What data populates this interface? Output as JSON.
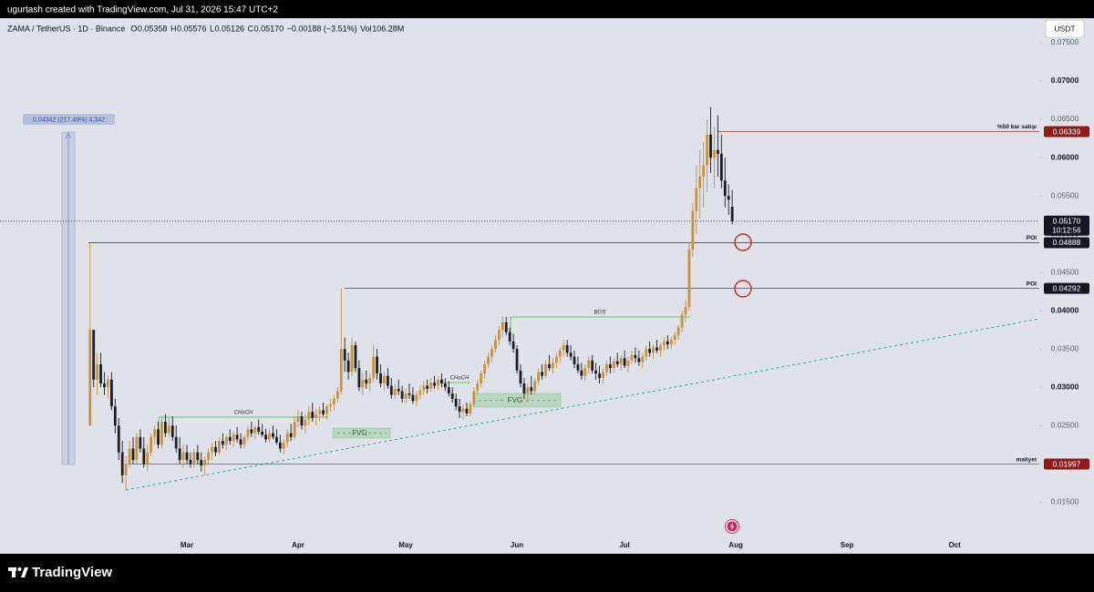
{
  "header": {
    "credit": "ugurtash created with TradingView.com, Jul 31, 2026 15:47 UTC+2",
    "legend": {
      "symbol": "ZAMA / TetherUS · 1D · Binance",
      "ohlc": [
        {
          "label": "O",
          "value": "0.05358"
        },
        {
          "label": "H",
          "value": "0.05576"
        },
        {
          "label": "L",
          "value": "0.05126"
        },
        {
          "label": "C",
          "value": "0.05170"
        }
      ],
      "change": "−0.00188 (−3.51%)",
      "volume_label": "Vol",
      "volume": "106.28M"
    },
    "currency": "USDT"
  },
  "chart_data": {
    "type": "candlestick",
    "categories": [
      null,
      null,
      null,
      null,
      null,
      null,
      null,
      null,
      null,
      null,
      null,
      null,
      null,
      null,
      null,
      null,
      null,
      null,
      null,
      null,
      null,
      null,
      null,
      null,
      null,
      null,
      null,
      "Mar",
      null,
      null,
      null,
      null,
      null,
      null,
      null,
      null,
      null,
      null,
      null,
      null,
      null,
      null,
      null,
      null,
      null,
      null,
      null,
      null,
      null,
      null,
      null,
      null,
      null,
      null,
      null,
      null,
      null,
      null,
      "Apr",
      null,
      null,
      null,
      null,
      null,
      null,
      null,
      null,
      null,
      null,
      null,
      null,
      null,
      null,
      null,
      null,
      null,
      null,
      null,
      null,
      null,
      null,
      null,
      null,
      null,
      null,
      null,
      null,
      null,
      "May",
      null,
      null,
      null,
      null,
      null,
      null,
      null,
      null,
      null,
      null,
      null,
      null,
      null,
      null,
      null,
      null,
      null,
      null,
      null,
      null,
      null,
      null,
      null,
      null,
      null,
      null,
      null,
      null,
      null,
      null,
      "Jun",
      null,
      null,
      null,
      null,
      null,
      null,
      null,
      null,
      null,
      null,
      null,
      null,
      null,
      null,
      null,
      null,
      null,
      null,
      null,
      null,
      null,
      null,
      null,
      null,
      null,
      null,
      null,
      null,
      null,
      "Jul",
      null,
      null,
      null,
      null,
      null,
      null,
      null,
      null,
      null,
      null,
      null,
      null,
      null,
      null,
      null,
      null,
      null,
      null,
      null,
      null,
      null,
      null,
      null,
      null,
      null,
      null,
      null,
      null,
      null,
      null,
      "Aug",
      null,
      null,
      null,
      null,
      null,
      null,
      null,
      null,
      null,
      null,
      null,
      null,
      null,
      null,
      null,
      null,
      null,
      null,
      null,
      null,
      null,
      null,
      null,
      null,
      null,
      null,
      null,
      null,
      null,
      null,
      "Sep",
      null,
      null,
      null,
      null,
      null,
      null,
      null,
      null,
      null,
      null,
      null,
      null,
      null,
      null,
      null,
      null,
      null,
      null,
      null,
      null,
      null,
      null,
      null,
      null,
      null,
      null,
      null,
      null,
      null,
      "Oct",
      null,
      null,
      null,
      null,
      null,
      null,
      null,
      null,
      null,
      null,
      null,
      null,
      null,
      null,
      null,
      null,
      null,
      null,
      null,
      null,
      null,
      null,
      null
    ],
    "open": [
      0.025,
      0.0375,
      0.031,
      0.033,
      0.0305,
      0.03,
      0.031,
      0.0275,
      0.025,
      0.0215,
      0.0185,
      0.02,
      0.022,
      0.0205,
      0.0235,
      0.022,
      0.02,
      0.0215,
      0.0235,
      0.0245,
      0.0225,
      0.0255,
      0.024,
      0.025,
      0.0235,
      0.022,
      0.0205,
      0.0215,
      0.0205,
      0.02,
      0.0215,
      0.0205,
      0.0198,
      0.0205,
      0.0215,
      0.0222,
      0.0215,
      0.023,
      0.0225,
      0.0235,
      0.023,
      0.0238,
      0.0232,
      0.0225,
      0.0235,
      0.0245,
      0.024,
      0.0248,
      0.0242,
      0.0238,
      0.0232,
      0.024,
      0.0235,
      0.0228,
      0.022,
      0.0228,
      0.024,
      0.0235,
      0.0255,
      0.0262,
      0.025,
      0.0258,
      0.0268,
      0.026,
      0.0265,
      0.027,
      0.0265,
      0.0275,
      0.0278,
      0.0285,
      0.0295,
      0.035,
      0.0335,
      0.032,
      0.0355,
      0.0325,
      0.03,
      0.031,
      0.0305,
      0.0312,
      0.034,
      0.0318,
      0.0305,
      0.0315,
      0.0302,
      0.029,
      0.0298,
      0.0295,
      0.0285,
      0.0292,
      0.029,
      0.0282,
      0.029,
      0.0296,
      0.0302,
      0.0298,
      0.0306,
      0.0302,
      0.031,
      0.0305,
      0.03,
      0.0292,
      0.0285,
      0.0275,
      0.0268,
      0.0272,
      0.0266,
      0.0278,
      0.0295,
      0.0305,
      0.0318,
      0.033,
      0.034,
      0.035,
      0.0362,
      0.0375,
      0.0385,
      0.0372,
      0.036,
      0.035,
      0.0322,
      0.0305,
      0.0292,
      0.03,
      0.0295,
      0.0308,
      0.032,
      0.0315,
      0.033,
      0.0325,
      0.0332,
      0.034,
      0.0348,
      0.0355,
      0.0345,
      0.034,
      0.033,
      0.0322,
      0.0315,
      0.0325,
      0.0335,
      0.0322,
      0.0318,
      0.0312,
      0.032,
      0.033,
      0.0325,
      0.0334,
      0.033,
      0.0338,
      0.0328,
      0.0335,
      0.0342,
      0.0338,
      0.0333,
      0.034,
      0.035,
      0.0345,
      0.0352,
      0.0348,
      0.0355,
      0.036,
      0.0356,
      0.0362,
      0.0368,
      0.0378,
      0.0395,
      0.0405,
      0.048,
      0.053,
      0.056,
      0.0575,
      0.059,
      0.063,
      0.06,
      0.061,
      0.0605,
      0.057,
      0.055,
      0.05358,
      null,
      null,
      null,
      null,
      null,
      null,
      null,
      null,
      null,
      null,
      null,
      null,
      null,
      null,
      null,
      null,
      null,
      null,
      null,
      null,
      null,
      null,
      null,
      null,
      null,
      null,
      null,
      null,
      null,
      null,
      null,
      null,
      null,
      null,
      null,
      null,
      null,
      null,
      null,
      null,
      null,
      null,
      null,
      null,
      null,
      null,
      null,
      null,
      null,
      null,
      null,
      null,
      null,
      null,
      null,
      null,
      null,
      null,
      null,
      null,
      null,
      null,
      null,
      null,
      null,
      null,
      null,
      null,
      null,
      null,
      null,
      null,
      null,
      null,
      null,
      null,
      null,
      null,
      null,
      null,
      null,
      null,
      null,
      null,
      null
    ],
    "high": [
      0.0489,
      0.0375,
      0.0345,
      0.0345,
      0.032,
      0.0315,
      0.032,
      0.0285,
      0.026,
      0.023,
      0.021,
      0.023,
      0.0235,
      0.024,
      0.0245,
      0.0235,
      0.0225,
      0.024,
      0.025,
      0.0255,
      0.026,
      0.0265,
      0.026,
      0.0262,
      0.025,
      0.0235,
      0.0225,
      0.0225,
      0.0215,
      0.022,
      0.0225,
      0.0215,
      0.021,
      0.022,
      0.0228,
      0.023,
      0.0235,
      0.024,
      0.0238,
      0.0245,
      0.0242,
      0.0248,
      0.024,
      0.0238,
      0.025,
      0.0255,
      0.025,
      0.0258,
      0.0252,
      0.0246,
      0.0245,
      0.025,
      0.0245,
      0.0238,
      0.0232,
      0.0245,
      0.0252,
      0.0262,
      0.027,
      0.0268,
      0.0265,
      0.0275,
      0.028,
      0.0272,
      0.0275,
      0.028,
      0.0278,
      0.0285,
      0.029,
      0.03,
      0.0429,
      0.0365,
      0.0345,
      0.0365,
      0.036,
      0.0335,
      0.032,
      0.0322,
      0.0318,
      0.0355,
      0.035,
      0.033,
      0.032,
      0.0325,
      0.0312,
      0.0305,
      0.031,
      0.0302,
      0.0298,
      0.0305,
      0.03,
      0.0295,
      0.0302,
      0.0308,
      0.031,
      0.0312,
      0.0315,
      0.0314,
      0.0318,
      0.0312,
      0.0308,
      0.03,
      0.0292,
      0.0285,
      0.0278,
      0.028,
      0.0282,
      0.03,
      0.031,
      0.0322,
      0.0335,
      0.0345,
      0.0355,
      0.0368,
      0.038,
      0.0393,
      0.0392,
      0.0378,
      0.037,
      0.0355,
      0.033,
      0.0312,
      0.0305,
      0.0315,
      0.0312,
      0.0325,
      0.033,
      0.0335,
      0.0342,
      0.0338,
      0.0345,
      0.0352,
      0.0362,
      0.0362,
      0.0355,
      0.0348,
      0.034,
      0.0332,
      0.033,
      0.034,
      0.0342,
      0.0332,
      0.0328,
      0.0325,
      0.0335,
      0.034,
      0.0338,
      0.0345,
      0.0342,
      0.0348,
      0.034,
      0.0348,
      0.0352,
      0.0348,
      0.0345,
      0.0355,
      0.036,
      0.0356,
      0.0362,
      0.0358,
      0.0365,
      0.0368,
      0.0366,
      0.0372,
      0.0382,
      0.04,
      0.0415,
      0.049,
      0.054,
      0.059,
      0.061,
      0.062,
      0.065,
      0.0666,
      0.064,
      0.0655,
      0.063,
      0.06,
      0.0565,
      0.05576,
      null,
      null,
      null,
      null,
      null,
      null,
      null,
      null,
      null,
      null,
      null,
      null,
      null,
      null,
      null,
      null,
      null,
      null,
      null,
      null,
      null,
      null,
      null,
      null,
      null,
      null,
      null,
      null,
      null,
      null,
      null,
      null,
      null,
      null,
      null,
      null,
      null,
      null,
      null,
      null,
      null,
      null,
      null,
      null,
      null,
      null,
      null,
      null,
      null,
      null,
      null,
      null,
      null,
      null,
      null,
      null,
      null,
      null,
      null,
      null,
      null,
      null,
      null,
      null,
      null,
      null,
      null,
      null,
      null,
      null,
      null,
      null,
      null,
      null,
      null,
      null,
      null,
      null,
      null,
      null,
      null,
      null,
      null,
      null,
      null
    ],
    "low": [
      0.025,
      0.03,
      0.029,
      0.03,
      0.029,
      0.0285,
      0.027,
      0.024,
      0.0205,
      0.0175,
      0.0165,
      0.0195,
      0.02,
      0.02,
      0.0215,
      0.0195,
      0.019,
      0.021,
      0.0225,
      0.022,
      0.022,
      0.0235,
      0.0235,
      0.023,
      0.0215,
      0.02,
      0.0195,
      0.02,
      0.0195,
      0.0195,
      0.02,
      0.019,
      0.0185,
      0.02,
      0.0205,
      0.021,
      0.0212,
      0.022,
      0.0218,
      0.0225,
      0.0222,
      0.0228,
      0.022,
      0.022,
      0.023,
      0.0235,
      0.0232,
      0.0238,
      0.0235,
      0.0228,
      0.0228,
      0.0232,
      0.0225,
      0.0215,
      0.0212,
      0.0222,
      0.023,
      0.0232,
      0.0248,
      0.0245,
      0.024,
      0.025,
      0.0255,
      0.025,
      0.0255,
      0.0262,
      0.0258,
      0.0268,
      0.027,
      0.028,
      0.029,
      0.032,
      0.031,
      0.0315,
      0.032,
      0.0295,
      0.029,
      0.0298,
      0.0295,
      0.0308,
      0.031,
      0.03,
      0.0295,
      0.0298,
      0.0285,
      0.0285,
      0.029,
      0.028,
      0.0278,
      0.0285,
      0.0278,
      0.0275,
      0.0284,
      0.029,
      0.0292,
      0.0294,
      0.0298,
      0.0296,
      0.03,
      0.0295,
      0.0288,
      0.028,
      0.027,
      0.026,
      0.0258,
      0.0262,
      0.0262,
      0.0275,
      0.029,
      0.03,
      0.0312,
      0.0325,
      0.0332,
      0.0345,
      0.0355,
      0.0365,
      0.0368,
      0.0355,
      0.0345,
      0.0318,
      0.03,
      0.0285,
      0.028,
      0.029,
      0.029,
      0.0302,
      0.031,
      0.0312,
      0.0322,
      0.0318,
      0.0325,
      0.0332,
      0.034,
      0.034,
      0.0335,
      0.0325,
      0.0318,
      0.031,
      0.0308,
      0.0318,
      0.0318,
      0.031,
      0.0305,
      0.0305,
      0.0315,
      0.0318,
      0.032,
      0.0326,
      0.0322,
      0.0325,
      0.032,
      0.033,
      0.0332,
      0.0328,
      0.0325,
      0.0335,
      0.034,
      0.0338,
      0.0345,
      0.034,
      0.0348,
      0.035,
      0.035,
      0.0355,
      0.0362,
      0.0372,
      0.0385,
      0.04,
      0.047,
      0.05,
      0.052,
      0.0535,
      0.0555,
      0.058,
      0.056,
      0.0575,
      0.056,
      0.0535,
      0.0525,
      0.05126,
      null,
      null,
      null,
      null,
      null,
      null,
      null,
      null,
      null,
      null,
      null,
      null,
      null,
      null,
      null,
      null,
      null,
      null,
      null,
      null,
      null,
      null,
      null,
      null,
      null,
      null,
      null,
      null,
      null,
      null,
      null,
      null,
      null,
      null,
      null,
      null,
      null,
      null,
      null,
      null,
      null,
      null,
      null,
      null,
      null,
      null,
      null,
      null,
      null,
      null,
      null,
      null,
      null,
      null,
      null,
      null,
      null,
      null,
      null,
      null,
      null,
      null,
      null,
      null,
      null,
      null,
      null,
      null,
      null,
      null,
      null,
      null,
      null,
      null,
      null,
      null,
      null,
      null,
      null,
      null,
      null,
      null,
      null,
      null,
      null
    ],
    "close": [
      0.0375,
      0.031,
      0.033,
      0.0305,
      0.03,
      0.031,
      0.0275,
      0.025,
      0.0215,
      0.0185,
      0.02,
      0.022,
      0.0205,
      0.0235,
      0.022,
      0.02,
      0.0215,
      0.0235,
      0.0245,
      0.0225,
      0.0255,
      0.024,
      0.025,
      0.0235,
      0.022,
      0.0205,
      0.0215,
      0.0205,
      0.02,
      0.0215,
      0.0205,
      0.0198,
      0.0205,
      0.0215,
      0.0222,
      0.0215,
      0.023,
      0.0225,
      0.0235,
      0.023,
      0.0238,
      0.0232,
      0.0225,
      0.0235,
      0.0245,
      0.024,
      0.0248,
      0.0242,
      0.0238,
      0.0232,
      0.024,
      0.0235,
      0.0228,
      0.022,
      0.0228,
      0.024,
      0.0235,
      0.0255,
      0.0262,
      0.025,
      0.0258,
      0.0268,
      0.026,
      0.0265,
      0.027,
      0.0265,
      0.0275,
      0.0278,
      0.0285,
      0.0295,
      0.035,
      0.0335,
      0.032,
      0.0355,
      0.0325,
      0.03,
      0.031,
      0.0305,
      0.0312,
      0.034,
      0.0318,
      0.0305,
      0.0315,
      0.0302,
      0.029,
      0.0298,
      0.0295,
      0.0285,
      0.0292,
      0.029,
      0.0282,
      0.029,
      0.0296,
      0.0302,
      0.0298,
      0.0306,
      0.0302,
      0.031,
      0.0305,
      0.03,
      0.0292,
      0.0285,
      0.0275,
      0.0268,
      0.0272,
      0.0266,
      0.0278,
      0.0295,
      0.0305,
      0.0318,
      0.033,
      0.034,
      0.035,
      0.0362,
      0.0375,
      0.0385,
      0.0372,
      0.036,
      0.035,
      0.0322,
      0.0305,
      0.0292,
      0.03,
      0.0295,
      0.0308,
      0.032,
      0.0315,
      0.033,
      0.0325,
      0.0332,
      0.034,
      0.0348,
      0.0355,
      0.0345,
      0.034,
      0.033,
      0.0322,
      0.0315,
      0.0325,
      0.0335,
      0.0322,
      0.0318,
      0.0312,
      0.032,
      0.033,
      0.0325,
      0.0334,
      0.033,
      0.0338,
      0.0328,
      0.0335,
      0.0342,
      0.0338,
      0.0333,
      0.034,
      0.035,
      0.0345,
      0.0352,
      0.0348,
      0.0355,
      0.036,
      0.0356,
      0.0362,
      0.0368,
      0.0378,
      0.0395,
      0.0405,
      0.048,
      0.053,
      0.056,
      0.0575,
      0.059,
      0.063,
      0.06,
      0.061,
      0.0605,
      0.057,
      0.055,
      0.0545,
      0.0517,
      null,
      null,
      null,
      null,
      null,
      null,
      null,
      null,
      null,
      null,
      null,
      null,
      null,
      null,
      null,
      null,
      null,
      null,
      null,
      null,
      null,
      null,
      null,
      null,
      null,
      null,
      null,
      null,
      null,
      null,
      null,
      null,
      null,
      null,
      null,
      null,
      null,
      null,
      null,
      null,
      null,
      null,
      null,
      null,
      null,
      null,
      null,
      null,
      null,
      null,
      null,
      null,
      null,
      null,
      null,
      null,
      null,
      null,
      null,
      null,
      null,
      null,
      null,
      null,
      null,
      null,
      null,
      null,
      null,
      null,
      null,
      null,
      null,
      null,
      null,
      null,
      null,
      null,
      null,
      null,
      null,
      null,
      null,
      null,
      null
    ],
    "up_color": "#c8923f",
    "down_color": "#1b1e26",
    "ylim": [
      0.0104,
      0.0782
    ],
    "yticks": [
      {
        "value": 0.015,
        "label": "0.01500"
      },
      {
        "value": 0.02,
        "label": "0.02000"
      },
      {
        "value": 0.025,
        "label": "0.02500"
      },
      {
        "value": 0.03,
        "label": "0.03000"
      },
      {
        "value": 0.035,
        "label": "0.03500"
      },
      {
        "value": 0.04,
        "label": "0.04000"
      },
      {
        "value": 0.045,
        "label": "0.04500"
      },
      {
        "value": 0.05,
        "label": "0.05000"
      },
      {
        "value": 0.055,
        "label": "0.05500"
      },
      {
        "value": 0.06,
        "label": "0.06000"
      },
      {
        "value": 0.065,
        "label": "0.06500"
      },
      {
        "value": 0.07,
        "label": "0.07000"
      },
      {
        "value": 0.075,
        "label": "0.07500"
      }
    ],
    "grid": false,
    "price_levels": [
      {
        "value": 0.06339,
        "note": "%50 kar satışı",
        "color": "#8e1a1a"
      },
      {
        "value": 0.04888,
        "note": "POI",
        "color": "#131722"
      },
      {
        "value": 0.04292,
        "note": "POI",
        "color": "#131722"
      },
      {
        "value": 0.01997,
        "note": "maliyet",
        "color": "#8e1a1a"
      }
    ],
    "last_price": {
      "value": 0.0517,
      "label": "0.05170",
      "countdown": "10:12:56"
    },
    "annotations": {
      "measure": "0.04342 (217.49%) 4,342",
      "bos": "BOS",
      "choch": [
        "CHoCH",
        "CHoCH"
      ],
      "fvg": [
        "FVG",
        "FVG"
      ]
    }
  },
  "footer": {
    "brand": "TradingView"
  }
}
